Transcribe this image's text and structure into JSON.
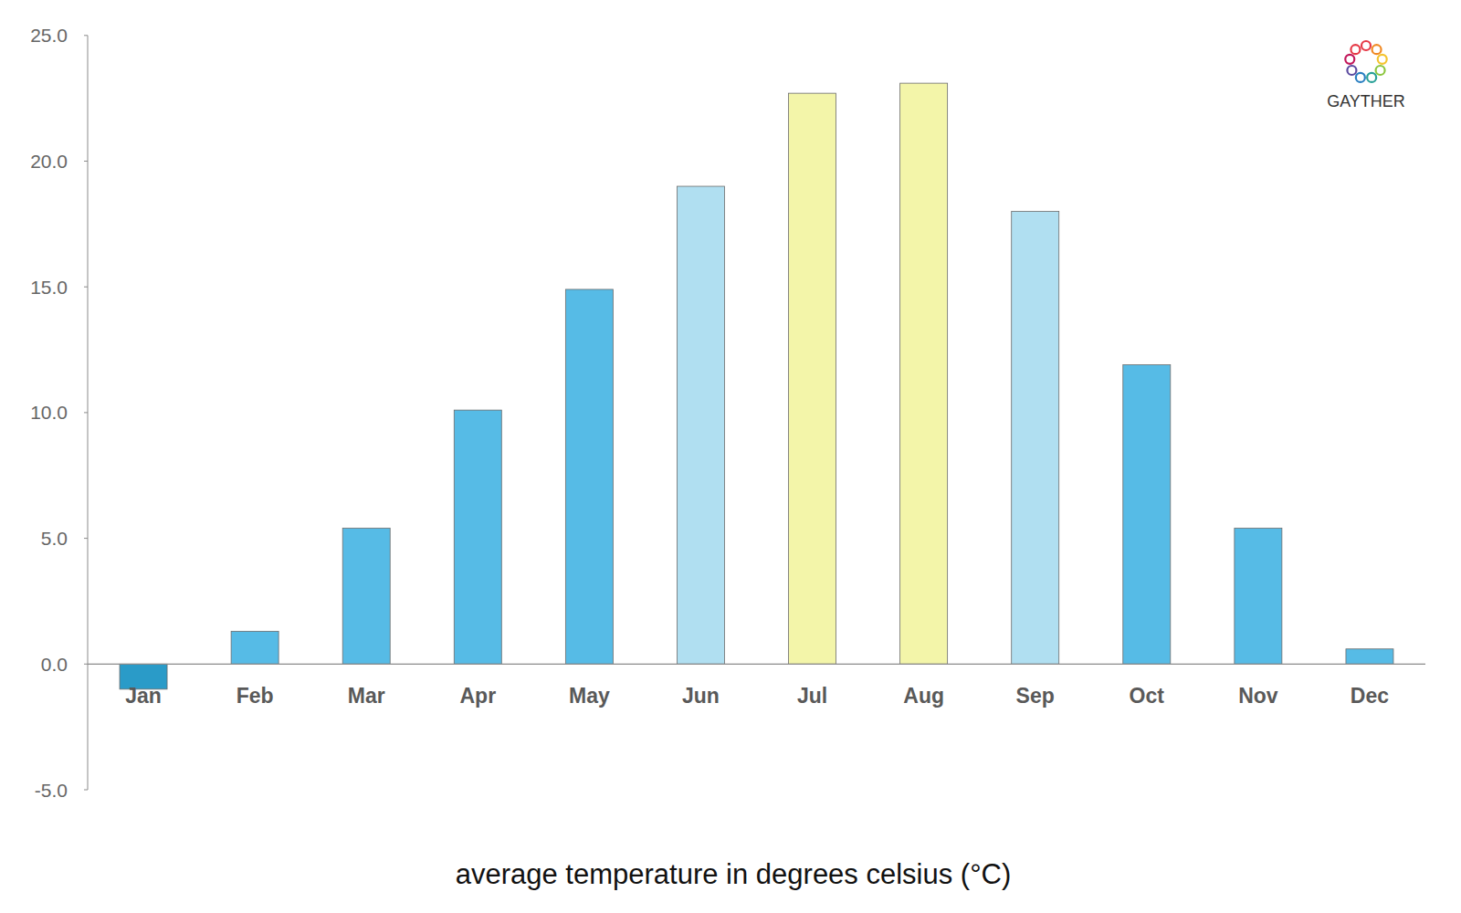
{
  "chart_data": {
    "type": "bar",
    "x_label": "average temperature in degrees celsius (°C)",
    "logo_text": "GAYTHER",
    "categories": [
      "Jan",
      "Feb",
      "Mar",
      "Apr",
      "May",
      "Jun",
      "Jul",
      "Aug",
      "Sep",
      "Oct",
      "Nov",
      "Dec"
    ],
    "values": [
      -1.0,
      1.3,
      5.4,
      10.1,
      14.9,
      19.0,
      22.7,
      23.1,
      18.0,
      11.9,
      5.4,
      0.6
    ],
    "colors": [
      "#2a9bc8",
      "#56bbe6",
      "#56bbe6",
      "#56bbe6",
      "#56bbe6",
      "#b0dff1",
      "#f3f5a9",
      "#f3f5a9",
      "#b0dff1",
      "#56bbe6",
      "#56bbe6",
      "#56bbe6"
    ],
    "ylim": [
      -5,
      25
    ],
    "yticks": [
      {
        "value": -5,
        "label": "-5.0"
      },
      {
        "value": 0,
        "label": "0.0"
      },
      {
        "value": 5,
        "label": "5.0"
      },
      {
        "value": 10,
        "label": "10.0"
      },
      {
        "value": 15,
        "label": "15.0"
      },
      {
        "value": 20,
        "label": "20.0"
      },
      {
        "value": 25,
        "label": "25.0"
      }
    ],
    "grid": false
  }
}
